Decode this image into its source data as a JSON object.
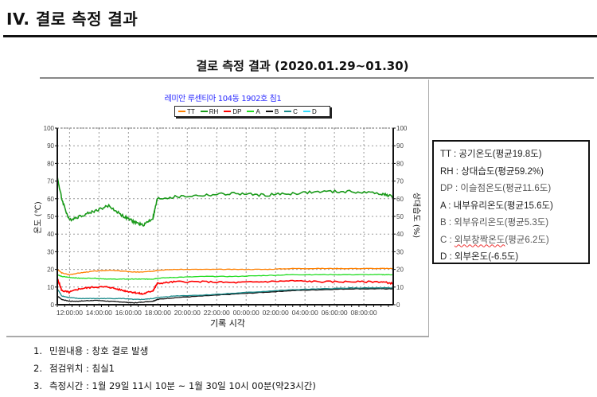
{
  "document": {
    "section_title": "IV. 결로 측정 결과",
    "chart_heading": "결로 측정 결과 (2020.01.29~01.30)"
  },
  "chart": {
    "device_title": "레미안 루센티아 104동 1902호 침1",
    "y_left_label": "온도 (℃)",
    "y_right_label": "상대습도 (%)",
    "x_label": "기록 시각"
  },
  "legend_notes": [
    {
      "code": "TT",
      "text": "TT : 공기온도(평균19.8도)"
    },
    {
      "code": "RH",
      "text": "RH : 상대습도(평균59.2%)"
    },
    {
      "code": "DP",
      "text": "DP : 이슬점온도(평균11.6도)"
    },
    {
      "code": "A",
      "text": "A : 내부유리온도(평균15.6도)"
    },
    {
      "code": "B",
      "text": "B : 외부유리온도(평균5.3도)"
    },
    {
      "code": "C_prefix",
      "text": "C : "
    },
    {
      "code": "C_mid",
      "text": "외부창짝온도"
    },
    {
      "code": "C_suffix",
      "text": "(평균6.2도)"
    },
    {
      "code": "D",
      "text": "D : 외부온도(-6.5도)"
    }
  ],
  "info": [
    {
      "num": "1.",
      "text": "민원내용 : 창호 결로 발생"
    },
    {
      "num": "2.",
      "text": "점검위치 : 침실1"
    },
    {
      "num": "3.",
      "text": "측정시간 : 1월 29일 11시 10분 ~ 1월 30일 10시 00분(약23시간)"
    }
  ],
  "chart_data": {
    "type": "line",
    "title": "레미안 루센티아 104동 1902호 침1",
    "xlabel": "기록 시각",
    "ylabel": "온도 (℃)",
    "ylabel_right": "상대습도 (%)",
    "ylim": [
      0,
      100
    ],
    "ylim_right": [
      0,
      100
    ],
    "yticks": [
      0,
      10,
      20,
      30,
      40,
      50,
      60,
      70,
      80,
      90,
      100
    ],
    "grid": true,
    "legend_position": "top",
    "x_ticks": [
      "12:00:00",
      "14:00:00",
      "16:00:00",
      "18:00:00",
      "20:00:00",
      "22:00:00",
      "00:00:00",
      "02:00:00",
      "04:00:00",
      "06:00:00",
      "08:00:00"
    ],
    "x_hours_from_start": [
      0,
      0.3,
      0.8,
      1.5,
      2.5,
      3.5,
      4.5,
      5.2,
      5.8,
      6.5,
      6.8,
      8,
      10,
      12,
      14,
      16,
      18,
      20,
      22,
      22.83
    ],
    "series": [
      {
        "name": "TT",
        "color": "#ff8000",
        "values": [
          20,
          18,
          17,
          18,
          19,
          19.5,
          19,
          18.5,
          18.5,
          19,
          19.5,
          20,
          20,
          20,
          20,
          20.5,
          20.5,
          20.5,
          20.5,
          20.5
        ]
      },
      {
        "name": "RH",
        "color": "#1a9a1a",
        "values": [
          72,
          60,
          48,
          50,
          53,
          56,
          50,
          47,
          45,
          49,
          60,
          61,
          62,
          63,
          62,
          63,
          64,
          64,
          63,
          61
        ]
      },
      {
        "name": "DP",
        "color": "#ff0000",
        "values": [
          15,
          8,
          7,
          9,
          10,
          10,
          8,
          7,
          6,
          8,
          12,
          13,
          13,
          12.5,
          13,
          13.5,
          13,
          13,
          13,
          12
        ]
      },
      {
        "name": "A",
        "color": "#22dd22",
        "values": [
          17,
          16,
          15.5,
          15,
          15,
          14.5,
          14.5,
          14.5,
          14.5,
          14.5,
          15,
          15.5,
          16,
          16,
          16.5,
          17,
          17,
          17,
          17,
          17
        ]
      },
      {
        "name": "B",
        "color": "#111111",
        "values": [
          5,
          3,
          2,
          2,
          2.5,
          2,
          1.5,
          1,
          1.5,
          2,
          3,
          4,
          5,
          6,
          7,
          8,
          8.5,
          9,
          9,
          9
        ]
      },
      {
        "name": "C",
        "color": "#1a8a8a",
        "values": [
          9,
          5,
          4,
          3.5,
          3.5,
          3.5,
          3.5,
          3,
          3,
          3.5,
          4,
          5,
          5.5,
          6.5,
          7.5,
          8.5,
          9,
          9.5,
          9.5,
          9.5
        ]
      },
      {
        "name": "D",
        "color": "#33ddff",
        "values": []
      }
    ]
  }
}
